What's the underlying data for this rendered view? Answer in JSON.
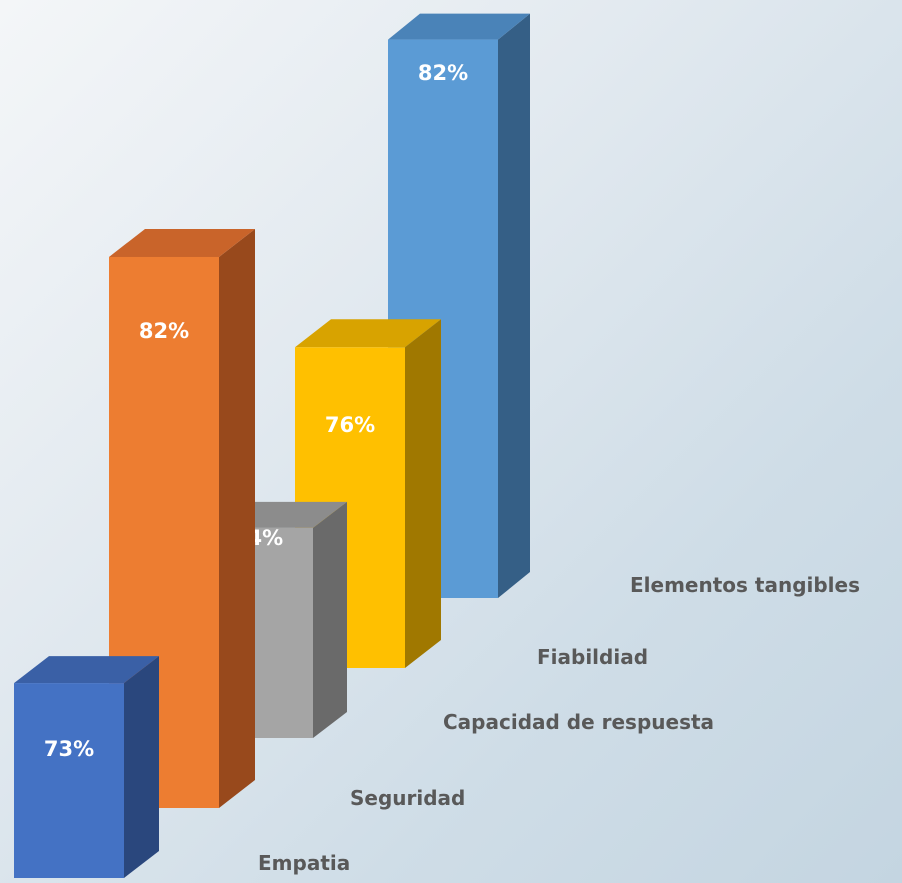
{
  "chart_data": {
    "type": "bar",
    "categories": [
      "Elementos tangibles",
      "Fiabildiad",
      "Capacidad de respuesta",
      "Seguridad",
      "Empatia"
    ],
    "values": [
      82,
      76,
      74,
      82,
      73
    ],
    "labels": [
      "82%",
      "76%",
      "74%",
      "82%",
      "73%"
    ],
    "colors": {
      "front": [
        "#5b9bd5",
        "#ffc000",
        "#a5a5a5",
        "#ed7d31",
        "#4472c4"
      ],
      "side": [
        "#355f86",
        "#a07800",
        "#6a6a6a",
        "#98491c",
        "#2a477d"
      ],
      "top": [
        "#4a83b8",
        "#d8a300",
        "#8c8c8c",
        "#c9642a",
        "#3a60a6"
      ]
    },
    "title": "",
    "xlabel": "",
    "ylabel": "",
    "grid": false,
    "legend": "none"
  }
}
